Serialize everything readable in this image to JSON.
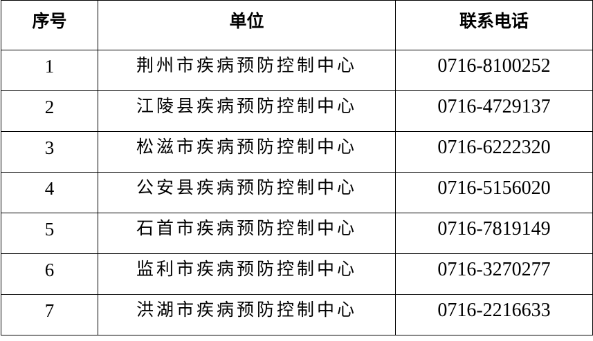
{
  "table": {
    "headers": [
      "序号",
      "单位",
      "联系电话"
    ],
    "rows": [
      {
        "no": "1",
        "unit": "荆州市疾病预防控制中心",
        "phone": "0716-8100252"
      },
      {
        "no": "2",
        "unit": "江陵县疾病预防控制中心",
        "phone": "0716-4729137"
      },
      {
        "no": "3",
        "unit": "松滋市疾病预防控制中心",
        "phone": "0716-6222320"
      },
      {
        "no": "4",
        "unit": "公安县疾病预防控制中心",
        "phone": "0716-5156020"
      },
      {
        "no": "5",
        "unit": "石首市疾病预防控制中心",
        "phone": "0716-7819149"
      },
      {
        "no": "6",
        "unit": "监利市疾病预防控制中心",
        "phone": "0716-3270277"
      },
      {
        "no": "7",
        "unit": "洪湖市疾病预防控制中心",
        "phone": "0716-2216633"
      }
    ]
  }
}
